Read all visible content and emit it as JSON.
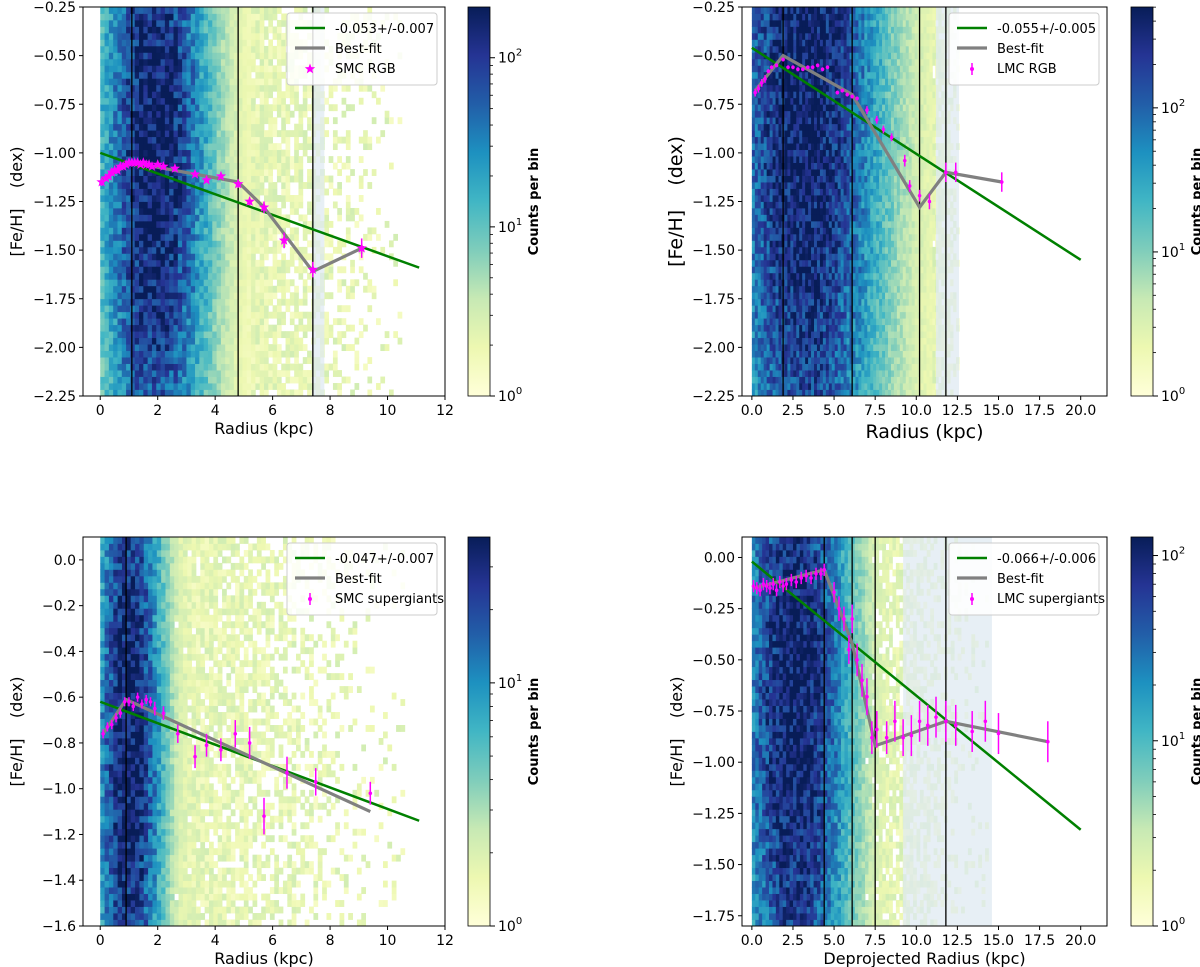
{
  "colors": {
    "fit_line": "#008000",
    "best_fit": "#808080",
    "data_points": "#ff00ff",
    "vertical_lines": "#000000",
    "band": "#dfe9f2",
    "colormap": [
      "#ffffd9",
      "#edf8b1",
      "#c7e9b4",
      "#7fcdbb",
      "#41b6c4",
      "#1d91c0",
      "#225ea8",
      "#253494",
      "#081d58"
    ]
  },
  "chart_data": [
    {
      "type": "heatmap",
      "panel": "top-left",
      "title": "",
      "xlabel": "Radius (kpc)",
      "ylabel": "[Fe/H]    (dex)",
      "xlim": [
        -0.6,
        12
      ],
      "ylim": [
        -2.25,
        -0.25
      ],
      "xticks": [
        0,
        2,
        4,
        6,
        8,
        10,
        12
      ],
      "yticks": [
        -2.25,
        -2.0,
        -1.75,
        -1.5,
        -1.25,
        -1.0,
        -0.75,
        -0.5,
        -0.25
      ],
      "xtick_labels": [
        "0",
        "2",
        "4",
        "6",
        "8",
        "10",
        "12"
      ],
      "ytick_labels": [
        "−2.25",
        "−2.00",
        "−1.75",
        "−1.50",
        "−1.25",
        "−1.00",
        "−0.75",
        "−0.50",
        "−0.25"
      ],
      "density": {
        "center": 1.9,
        "spread": 2.0,
        "ycenter": -1.0,
        "yspread": 1.4,
        "xmax": 10.5,
        "sparse_from": 5.2,
        "band": [
          7.4,
          7.8
        ]
      },
      "vlines": [
        1.1,
        4.8,
        7.4
      ],
      "fit_line": {
        "x": [
          0,
          11.1
        ],
        "y": [
          -1.0,
          -1.59
        ]
      },
      "best_fit": {
        "x": [
          0.05,
          1.1,
          4.8,
          5.7,
          7.4,
          9.1
        ],
        "y": [
          -1.14,
          -1.05,
          -1.15,
          -1.28,
          -1.61,
          -1.49
        ]
      },
      "points": {
        "marker": "star",
        "x": [
          0.05,
          0.2,
          0.3,
          0.4,
          0.5,
          0.6,
          0.7,
          0.8,
          0.9,
          1.0,
          1.1,
          1.2,
          1.3,
          1.4,
          1.5,
          1.6,
          1.7,
          1.8,
          2.0,
          2.2,
          2.6,
          3.3,
          3.7,
          4.2,
          4.8,
          5.2,
          5.7,
          6.4,
          7.4,
          9.1
        ],
        "y": [
          -1.15,
          -1.13,
          -1.12,
          -1.1,
          -1.09,
          -1.09,
          -1.07,
          -1.07,
          -1.06,
          -1.05,
          -1.05,
          -1.05,
          -1.05,
          -1.06,
          -1.05,
          -1.06,
          -1.06,
          -1.07,
          -1.06,
          -1.07,
          -1.08,
          -1.11,
          -1.14,
          -1.12,
          -1.16,
          -1.25,
          -1.28,
          -1.45,
          -1.6,
          -1.49
        ],
        "err": [
          0.02,
          0.01,
          0.01,
          0.01,
          0.01,
          0.01,
          0.01,
          0.01,
          0.01,
          0.01,
          0.01,
          0.01,
          0.01,
          0.01,
          0.01,
          0.01,
          0.01,
          0.01,
          0.01,
          0.01,
          0.01,
          0.01,
          0.01,
          0.01,
          0.02,
          0.02,
          0.03,
          0.04,
          0.04,
          0.05
        ]
      },
      "legend": {
        "location": "upper-right",
        "entries": [
          "-0.053+/-0.007",
          "Best-fit",
          "SMC RGB"
        ]
      },
      "colorbar": {
        "label": "Counts per bin",
        "min_exp": 0,
        "max_exp": 2.3,
        "ticks": [
          0,
          1,
          2
        ]
      }
    },
    {
      "type": "heatmap",
      "panel": "top-right",
      "title": "",
      "xlabel": "Radius (kpc)",
      "ylabel": "[Fe/H]    (dex)",
      "xlim": [
        -0.6,
        21.6
      ],
      "ylim": [
        -2.25,
        -0.25
      ],
      "xticks": [
        0,
        2.5,
        5,
        7.5,
        10,
        12.5,
        15,
        17.5,
        20
      ],
      "yticks": [
        -2.25,
        -2.0,
        -1.75,
        -1.5,
        -1.25,
        -1.0,
        -0.75,
        -0.5,
        -0.25
      ],
      "xtick_labels": [
        "0.0",
        "2.5",
        "5.0",
        "7.5",
        "10.0",
        "12.5",
        "15.0",
        "17.5",
        "20.0"
      ],
      "ytick_labels": [
        "−2.25",
        "−2.00",
        "−1.75",
        "−1.50",
        "−1.25",
        "−1.00",
        "−0.75",
        "−0.50",
        "−0.25"
      ],
      "density": {
        "center": 3.2,
        "spread": 5.0,
        "ycenter": -0.7,
        "yspread": 1.9,
        "xmax": 12.6,
        "sparse_from": 11.0,
        "band": [
          11.2,
          12.6
        ]
      },
      "vlines": [
        1.9,
        6.1,
        10.2,
        11.8
      ],
      "fit_line": {
        "x": [
          0,
          20
        ],
        "y": [
          -0.46,
          -1.55
        ]
      },
      "best_fit": {
        "x": [
          0.2,
          1.9,
          6.1,
          10.2,
          11.8,
          15.2
        ],
        "y": [
          -0.68,
          -0.5,
          -0.7,
          -1.28,
          -1.1,
          -1.15
        ]
      },
      "points": {
        "marker": "dot",
        "x": [
          0.2,
          0.4,
          0.6,
          0.8,
          1.0,
          1.2,
          1.5,
          1.9,
          2.2,
          2.5,
          2.8,
          3.1,
          3.4,
          3.7,
          4.0,
          4.3,
          4.6,
          5.2,
          5.5,
          5.8,
          6.1,
          6.4,
          7.0,
          7.6,
          8.0,
          8.5,
          9.3,
          9.6,
          10.2,
          10.8,
          11.8,
          12.4,
          15.2
        ],
        "y": [
          -0.69,
          -0.67,
          -0.64,
          -0.62,
          -0.58,
          -0.56,
          -0.55,
          -0.52,
          -0.56,
          -0.56,
          -0.57,
          -0.57,
          -0.56,
          -0.56,
          -0.55,
          -0.57,
          -0.56,
          -0.69,
          -0.68,
          -0.7,
          -0.71,
          -0.72,
          -0.78,
          -0.83,
          -0.88,
          -0.92,
          -1.04,
          -1.17,
          -1.22,
          -1.25,
          -1.1,
          -1.1,
          -1.15
        ],
        "err": [
          0.02,
          0.02,
          0.02,
          0.02,
          0.01,
          0.01,
          0.01,
          0.01,
          0.01,
          0.01,
          0.01,
          0.01,
          0.01,
          0.01,
          0.01,
          0.01,
          0.01,
          0.01,
          0.01,
          0.01,
          0.01,
          0.01,
          0.02,
          0.02,
          0.02,
          0.02,
          0.03,
          0.03,
          0.03,
          0.04,
          0.05,
          0.05,
          0.05
        ]
      },
      "legend": {
        "location": "upper-right",
        "entries": [
          "-0.055+/-0.005",
          "Best-fit",
          "LMC RGB"
        ]
      },
      "colorbar": {
        "label": "Counts per bin",
        "min_exp": 0,
        "max_exp": 2.7,
        "ticks": [
          0,
          1,
          2
        ]
      }
    },
    {
      "type": "heatmap",
      "panel": "bottom-left",
      "title": "",
      "xlabel": "Radius (kpc)",
      "ylabel": "[Fe/H]    (dex)",
      "xlim": [
        -0.6,
        12
      ],
      "ylim": [
        -1.6,
        0.1
      ],
      "xticks": [
        0,
        2,
        4,
        6,
        8,
        10,
        12
      ],
      "yticks": [
        -1.6,
        -1.4,
        -1.2,
        -1.0,
        -0.8,
        -0.6,
        -0.4,
        -0.2,
        0.0
      ],
      "xtick_labels": [
        "0",
        "2",
        "4",
        "6",
        "8",
        "10",
        "12"
      ],
      "ytick_labels": [
        "−1.6",
        "−1.4",
        "−1.2",
        "−1.0",
        "−0.8",
        "−0.6",
        "−0.4",
        "−0.2",
        "0.0"
      ],
      "density": {
        "center": 1.0,
        "spread": 1.25,
        "ycenter": -0.8,
        "yspread": 1.2,
        "xmax": 10.6,
        "sparse_from": 2.6,
        "band": null
      },
      "vlines": [
        0.9
      ],
      "fit_line": {
        "x": [
          0,
          11.1
        ],
        "y": [
          -0.62,
          -1.14
        ]
      },
      "best_fit": {
        "x": [
          0.1,
          0.9,
          9.4
        ],
        "y": [
          -0.76,
          -0.61,
          -1.1
        ]
      },
      "points": {
        "marker": "dot",
        "x": [
          0.1,
          0.25,
          0.4,
          0.55,
          0.7,
          0.85,
          1.0,
          1.15,
          1.3,
          1.45,
          1.6,
          1.75,
          1.9,
          2.2,
          2.7,
          3.3,
          3.7,
          4.2,
          4.7,
          5.2,
          5.7,
          6.5,
          7.5,
          9.4
        ],
        "y": [
          -0.76,
          -0.73,
          -0.72,
          -0.69,
          -0.67,
          -0.62,
          -0.62,
          -0.64,
          -0.6,
          -0.63,
          -0.61,
          -0.62,
          -0.65,
          -0.67,
          -0.76,
          -0.86,
          -0.81,
          -0.83,
          -0.76,
          -0.8,
          -1.12,
          -0.93,
          -0.97,
          -1.02
        ],
        "err": [
          0.02,
          0.02,
          0.02,
          0.02,
          0.02,
          0.02,
          0.02,
          0.02,
          0.02,
          0.02,
          0.02,
          0.02,
          0.03,
          0.03,
          0.04,
          0.05,
          0.05,
          0.05,
          0.06,
          0.07,
          0.08,
          0.07,
          0.06,
          0.05
        ]
      },
      "legend": {
        "location": "upper-right",
        "entries": [
          "-0.047+/-0.007",
          "Best-fit",
          "SMC supergiants"
        ]
      },
      "colorbar": {
        "label": "Counts per bin",
        "min_exp": 0,
        "max_exp": 1.6,
        "ticks": [
          0,
          1
        ]
      }
    },
    {
      "type": "heatmap",
      "panel": "bottom-right",
      "title": "",
      "xlabel": "Deprojected Radius (kpc)",
      "ylabel": "[Fe/H]    (dex)",
      "xlim": [
        -0.6,
        21.6
      ],
      "ylim": [
        -1.8,
        0.1
      ],
      "xticks": [
        0,
        2.5,
        5,
        7.5,
        10,
        12.5,
        15,
        17.5,
        20
      ],
      "yticks": [
        -1.75,
        -1.5,
        -1.25,
        -1.0,
        -0.75,
        -0.5,
        -0.25,
        0.0
      ],
      "xtick_labels": [
        "0.0",
        "2.5",
        "5.0",
        "7.5",
        "10.0",
        "12.5",
        "15.0",
        "17.5",
        "20.0"
      ],
      "ytick_labels": [
        "−1.75",
        "−1.50",
        "−1.25",
        "−1.00",
        "−0.75",
        "−0.50",
        "−0.25",
        "0.00"
      ],
      "density": {
        "center": 2.6,
        "spread": 3.6,
        "ycenter": -0.7,
        "yspread": 1.5,
        "xmax": 14.6,
        "sparse_from": 6.8,
        "band": [
          9.2,
          14.6
        ]
      },
      "vlines": [
        4.4,
        6.1,
        7.5,
        11.8
      ],
      "fit_line": {
        "x": [
          0,
          20
        ],
        "y": [
          -0.02,
          -1.33
        ]
      },
      "best_fit": {
        "x": [
          0.1,
          4.4,
          6.1,
          7.5,
          11.8,
          18.0
        ],
        "y": [
          -0.15,
          -0.06,
          -0.42,
          -0.92,
          -0.8,
          -0.9
        ]
      },
      "points": {
        "marker": "dot",
        "x": [
          0.1,
          0.3,
          0.5,
          0.7,
          0.9,
          1.1,
          1.3,
          1.5,
          1.7,
          1.9,
          2.1,
          2.4,
          2.7,
          3.0,
          3.3,
          3.6,
          3.9,
          4.2,
          4.4,
          5.0,
          5.3,
          5.6,
          5.9,
          6.1,
          6.4,
          6.7,
          7.0,
          7.3,
          7.6,
          8.2,
          8.7,
          9.2,
          9.7,
          10.2,
          10.7,
          11.2,
          11.8,
          12.4,
          13.4,
          14.2,
          15.0,
          18.0
        ],
        "y": [
          -0.14,
          -0.15,
          -0.16,
          -0.13,
          -0.14,
          -0.15,
          -0.13,
          -0.16,
          -0.12,
          -0.14,
          -0.13,
          -0.11,
          -0.12,
          -0.1,
          -0.09,
          -0.1,
          -0.08,
          -0.08,
          -0.06,
          -0.17,
          -0.25,
          -0.3,
          -0.45,
          -0.3,
          -0.5,
          -0.6,
          -0.68,
          -0.88,
          -0.84,
          -0.88,
          -0.8,
          -0.88,
          -0.87,
          -0.8,
          -0.82,
          -0.78,
          -0.8,
          -0.82,
          -0.85,
          -0.8,
          -0.86,
          -0.9
        ],
        "err": [
          0.03,
          0.03,
          0.03,
          0.03,
          0.03,
          0.03,
          0.03,
          0.03,
          0.03,
          0.03,
          0.03,
          0.03,
          0.03,
          0.03,
          0.03,
          0.03,
          0.03,
          0.03,
          0.03,
          0.05,
          0.06,
          0.06,
          0.07,
          0.07,
          0.08,
          0.08,
          0.09,
          0.08,
          0.09,
          0.08,
          0.1,
          0.09,
          0.1,
          0.1,
          0.1,
          0.1,
          0.1,
          0.1,
          0.1,
          0.1,
          0.1,
          0.1
        ]
      },
      "legend": {
        "location": "upper-right",
        "entries": [
          "-0.066+/-0.006",
          "Best-fit",
          "LMC supergiants"
        ]
      },
      "colorbar": {
        "label": "Counts per bin",
        "min_exp": 0,
        "max_exp": 2.1,
        "ticks": [
          0,
          1,
          2
        ]
      }
    }
  ]
}
